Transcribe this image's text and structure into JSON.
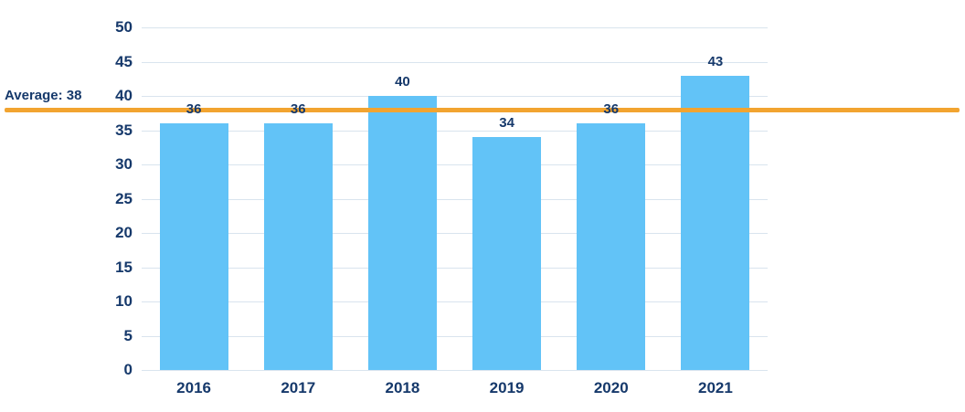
{
  "chart_data": {
    "type": "bar",
    "title": "",
    "xlabel": "",
    "ylabel": "",
    "categories": [
      "2016",
      "2017",
      "2018",
      "2019",
      "2020",
      "2021"
    ],
    "values": [
      36,
      36,
      40,
      34,
      36,
      43
    ],
    "ylim": [
      0,
      50
    ],
    "ytick_step": 5,
    "yticks": [
      0,
      5,
      10,
      15,
      20,
      25,
      30,
      35,
      40,
      45,
      50
    ],
    "grid": true,
    "legend": "none",
    "average_line": {
      "value": 38,
      "label": "Average: 38"
    }
  },
  "colors": {
    "background": "#ffffff",
    "bar": "#62c3f7",
    "text": "#16396b",
    "grid": "#d9e4ee",
    "average": "#f2a430"
  }
}
